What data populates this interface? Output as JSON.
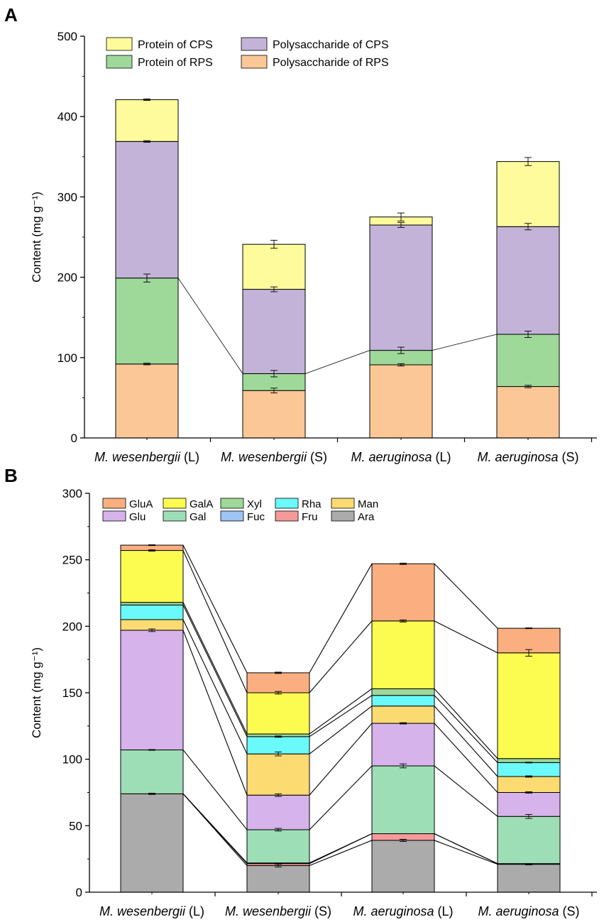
{
  "chart_data": [
    {
      "panel": "A",
      "type": "bar",
      "stacked": true,
      "title": "",
      "xlabel": "",
      "ylabel": "Content (mg g⁻¹)",
      "ylim": [
        0,
        500
      ],
      "yticks": [
        0,
        100,
        200,
        300,
        400,
        500
      ],
      "categories": [
        {
          "species": "M. wesenbergii",
          "suffix": " (L)"
        },
        {
          "species": "M. wesenbergii",
          "suffix": " (S)"
        },
        {
          "species": "M. aeruginosa",
          "suffix": " (L)"
        },
        {
          "species": "M. aeruginosa",
          "suffix": " (S)"
        }
      ],
      "series": [
        {
          "name": "Polysaccharide of RPS",
          "color": "#FBC796",
          "values": [
            92,
            59,
            91,
            64
          ],
          "errors": [
            1,
            3,
            1.5,
            1.5
          ]
        },
        {
          "name": "Protein of RPS",
          "color": "#9ED99A",
          "values": [
            107,
            21,
            18,
            65
          ],
          "errors": [
            5,
            4,
            4,
            4
          ]
        },
        {
          "name": "Polysaccharide of CPS",
          "color": "#C3B3D9",
          "values": [
            170,
            105,
            156,
            134
          ],
          "errors": [
            1,
            3,
            3,
            4
          ]
        },
        {
          "name": "Protein of CPS",
          "color": "#FDFB9C",
          "values": [
            52,
            56,
            10,
            81
          ],
          "errors": [
            1,
            5,
            5,
            5
          ]
        }
      ],
      "legend": [
        {
          "name": "Protein of CPS",
          "color": "#FDFB9C"
        },
        {
          "name": "Polysaccharide of CPS",
          "color": "#C3B3D9"
        },
        {
          "name": "Protein of RPS",
          "color": "#9ED99A"
        },
        {
          "name": "Polysaccharide of RPS",
          "color": "#FBC796"
        }
      ],
      "legend_position": "top"
    },
    {
      "panel": "B",
      "type": "bar",
      "stacked": true,
      "title": "",
      "xlabel": "",
      "ylabel": "Content (mg g⁻¹)",
      "ylim": [
        0,
        300
      ],
      "yticks": [
        0,
        50,
        100,
        150,
        200,
        250,
        300
      ],
      "categories": [
        {
          "species": "M. wesenbergii",
          "suffix": " (L)"
        },
        {
          "species": "M. wesenbergii",
          "suffix": " (S)"
        },
        {
          "species": "M. aeruginosa",
          "suffix": " (L)"
        },
        {
          "species": "M. aeruginosa",
          "suffix": " (S)"
        }
      ],
      "series": [
        {
          "name": "Ara",
          "color": "#ABABAB",
          "values": [
            74,
            20,
            39,
            21
          ],
          "errors": [
            0.5,
            1,
            0.8,
            0.5
          ]
        },
        {
          "name": "Fru",
          "color": "#F59A9A",
          "values": [
            0,
            1.5,
            5,
            0.5
          ],
          "errors": [
            0,
            0,
            0,
            0
          ]
        },
        {
          "name": "Fuc",
          "color": "#9EC3F5",
          "values": [
            0,
            0.5,
            0,
            0
          ],
          "errors": [
            0,
            0,
            0,
            0
          ]
        },
        {
          "name": "Gal",
          "color": "#9EDEB6",
          "values": [
            33,
            25,
            51,
            35.5
          ],
          "errors": [
            0.3,
            1,
            1.5,
            1.5
          ]
        },
        {
          "name": "Glu",
          "color": "#D6B3EB",
          "values": [
            90,
            26,
            32,
            18
          ],
          "errors": [
            1,
            1,
            0.5,
            0.5
          ]
        },
        {
          "name": "Man",
          "color": "#FDDB73",
          "values": [
            8,
            31,
            13,
            12
          ],
          "errors": [
            0,
            1.5,
            0,
            0.5
          ]
        },
        {
          "name": "Rha",
          "color": "#6BFAFA",
          "values": [
            11,
            13,
            8,
            10.5
          ],
          "errors": [
            0,
            0.5,
            0,
            0.3
          ]
        },
        {
          "name": "Xyl",
          "color": "#9ED99A",
          "values": [
            2,
            2,
            5,
            3
          ],
          "errors": [
            0,
            0,
            0,
            0
          ]
        },
        {
          "name": "GalA",
          "color": "#FCFC50",
          "values": [
            39,
            31,
            51,
            79.5
          ],
          "errors": [
            0.5,
            1,
            0.8,
            2.5
          ]
        },
        {
          "name": "GluA",
          "color": "#FBAF80",
          "values": [
            4,
            15,
            43,
            18.5
          ],
          "errors": [
            0.3,
            0.5,
            0.5,
            0.3
          ]
        }
      ],
      "legend": [
        {
          "name": "GluA",
          "color": "#FBAF80"
        },
        {
          "name": "GalA",
          "color": "#FCFC50"
        },
        {
          "name": "Xyl",
          "color": "#9ED99A"
        },
        {
          "name": "Rha",
          "color": "#6BFAFA"
        },
        {
          "name": "Man",
          "color": "#FDDB73"
        },
        {
          "name": "Glu",
          "color": "#D6B3EB"
        },
        {
          "name": "Gal",
          "color": "#9EDEB6"
        },
        {
          "name": "Fuc",
          "color": "#9EC3F5"
        },
        {
          "name": "Fru",
          "color": "#F59A9A"
        },
        {
          "name": "Ara",
          "color": "#ABABAB"
        }
      ],
      "legend_position": "top-left"
    }
  ]
}
